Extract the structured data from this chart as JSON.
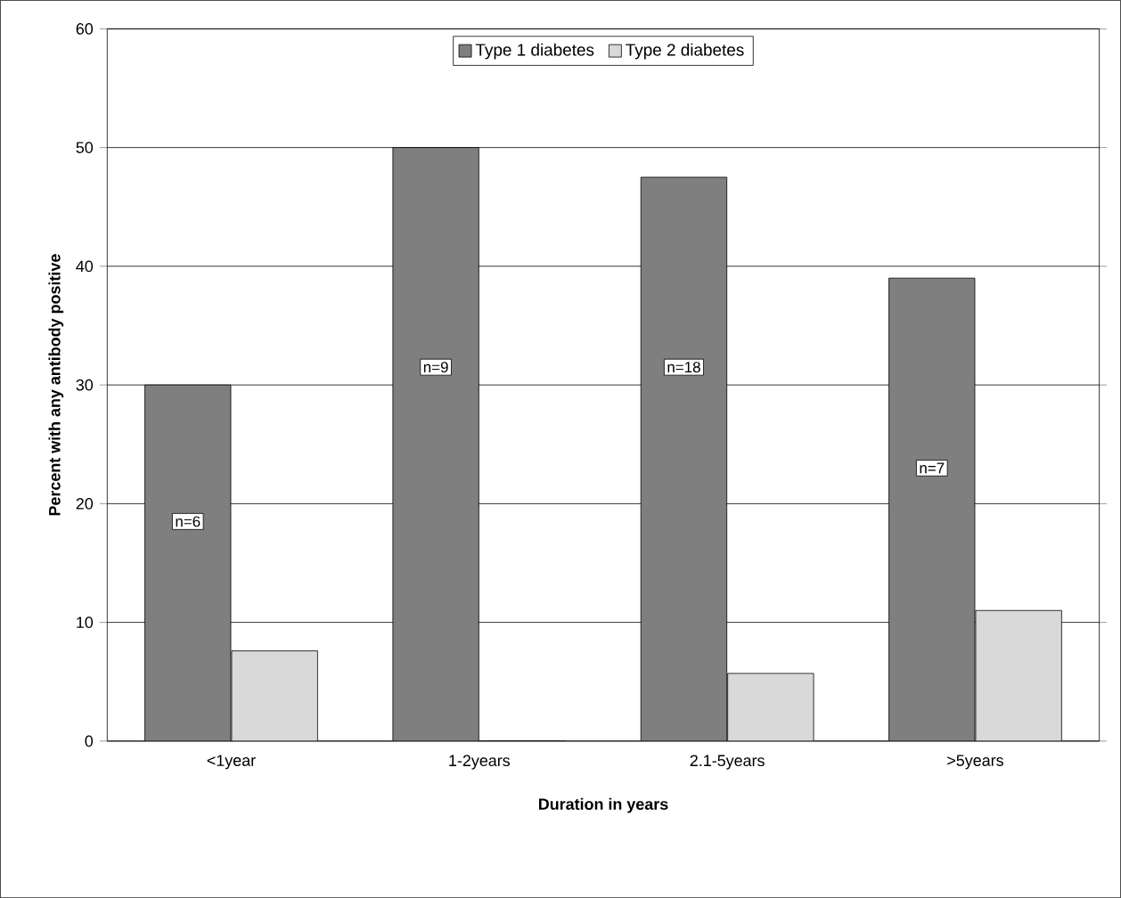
{
  "chart_data": {
    "type": "bar",
    "xlabel": "Duration in years",
    "ylabel": "Percent with any antibody positive",
    "categories": [
      "<1year",
      "1-2years",
      "2.1-5years",
      ">5years"
    ],
    "series": [
      {
        "name": "Type 1 diabetes",
        "color": "#7f7f7f",
        "values": [
          30,
          50,
          47.5,
          39
        ]
      },
      {
        "name": "Type 2 diabetes",
        "color": "#d9d9d9",
        "values": [
          7.6,
          0,
          5.7,
          11
        ]
      }
    ],
    "ylim": [
      0,
      60
    ],
    "yticks": [
      0,
      10,
      20,
      30,
      40,
      50,
      60
    ],
    "grid": "y",
    "legend": "top",
    "annotations": [
      {
        "text": "n=6",
        "x": "<1year",
        "y": 18.5
      },
      {
        "text": "n=9",
        "x": "1-2years",
        "y": 31.5
      },
      {
        "text": "n=18",
        "x": "2.1-5years",
        "y": 31.5
      },
      {
        "text": "n=7",
        "x": ">5years",
        "y": 23
      }
    ]
  }
}
